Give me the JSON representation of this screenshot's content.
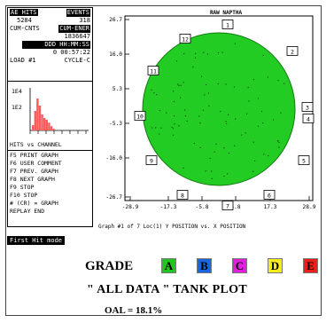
{
  "status": {
    "ae_hits_label": "AE HITS",
    "events_label": "EVENTS",
    "ae_hits_value": "5284",
    "events_value": "318",
    "cum_cnts_label": "CUM-CNTS",
    "cum_ener_label": "CUM-ENER",
    "cum_value": "1836647",
    "time_format": "DDD HH:MM:SS",
    "elapsed": "0 00:57:22",
    "load": "LOAD #1",
    "cycle": "CYCLE-C"
  },
  "histogram": {
    "ytop": "1E4",
    "ymid": "1E2",
    "caption": "HITS vs CHANNEL",
    "color": "#ff5a5a",
    "bars": [
      0.15,
      0.55,
      0.9,
      0.7,
      0.45,
      0.35,
      0.3,
      0.22,
      0.12,
      0.05
    ]
  },
  "fkeys": [
    "F5  PRINT GRAPH",
    "F6  USER COMMENT",
    "F7  PREV. GRAPH",
    "F8  NEXT GRAPH",
    "F9  STOP",
    "F10 STOP",
    "#  (CR) = GRAPH",
    "REPLAY END"
  ],
  "mode_badge": "First Hit mode",
  "plot": {
    "title": "RAW NAPTHA",
    "ylabels": [
      "26.7",
      "16.0",
      "5.3",
      "-5.3",
      "-16.0",
      "-26.7"
    ],
    "xlabels": [
      "-28.9",
      "-17.3",
      "-5.8",
      "5.8",
      "17.3",
      "28.9"
    ],
    "caption": "Graph #1 of 7 Loc(1) Y POSITION vs. X POSITION",
    "fill_color": "#22cc22",
    "sensors": [
      "1",
      "2",
      "3",
      "4",
      "5",
      "6",
      "7",
      "8",
      "9",
      "10",
      "11",
      "12"
    ]
  },
  "legend": {
    "title": "GRADE",
    "grades": [
      {
        "letter": "A",
        "bg": "#22c422",
        "fg": "#000000"
      },
      {
        "letter": "B",
        "bg": "#1a66e0",
        "fg": "#000000"
      },
      {
        "letter": "C",
        "bg": "#e020d8",
        "fg": "#000000"
      },
      {
        "letter": "D",
        "bg": "#f4ee1a",
        "fg": "#000000"
      },
      {
        "letter": "E",
        "bg": "#ee1c1c",
        "fg": "#000000"
      }
    ],
    "tank_plot": "\" ALL DATA \" TANK PLOT",
    "oal": "OAL = 18.1%"
  }
}
